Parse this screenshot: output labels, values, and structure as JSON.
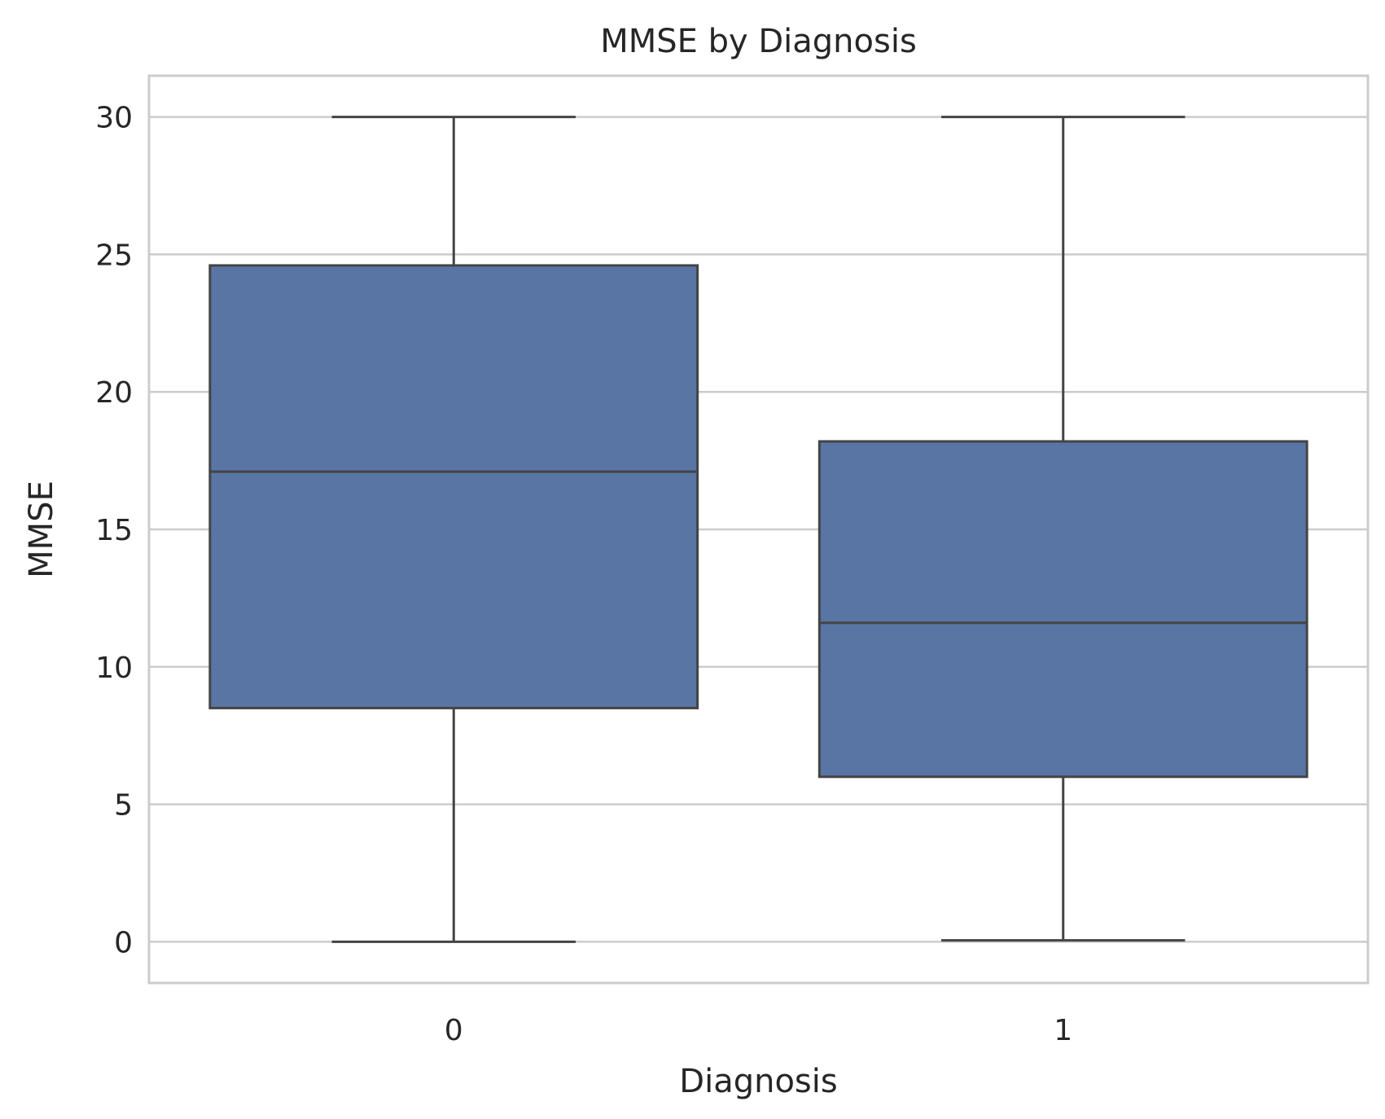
{
  "chart_data": {
    "type": "box",
    "title": "MMSE by Diagnosis",
    "xlabel": "Diagnosis",
    "ylabel": "MMSE",
    "categories": [
      "0",
      "1"
    ],
    "ylim": [
      -1.5,
      31.5
    ],
    "yticks": [
      0,
      5,
      10,
      15,
      20,
      25,
      30
    ],
    "grid": "y",
    "box_color": "#5975a4",
    "line_color": "#444444",
    "boxes": [
      {
        "category": "0",
        "whisker_low": 0.0,
        "q1": 8.5,
        "median": 17.1,
        "q3": 24.6,
        "whisker_high": 30.0
      },
      {
        "category": "1",
        "whisker_low": 0.05,
        "q1": 6.0,
        "median": 11.6,
        "q3": 18.2,
        "whisker_high": 30.0
      }
    ]
  }
}
